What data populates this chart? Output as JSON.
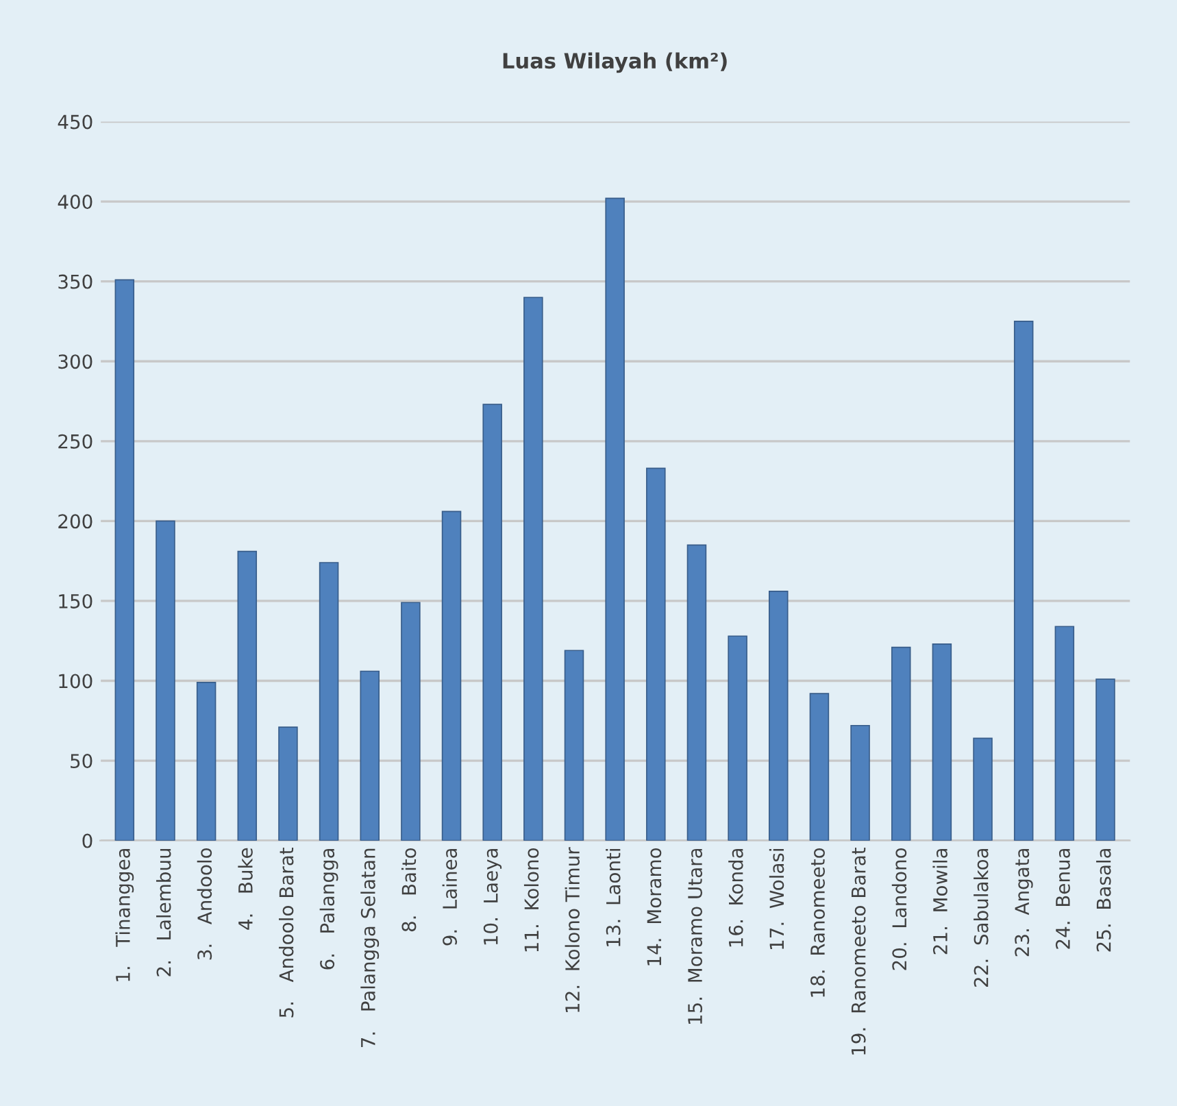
{
  "chart_data": {
    "type": "bar",
    "title": "Luas Wilayah (km²)",
    "categories": [
      "1.   Tinanggea",
      "2.   Lalembuu",
      "3.   Andoolo",
      "4.   Buke",
      "5.   Andoolo Barat",
      "6.   Palangga",
      "7.   Palangga Selatan",
      "8.   Baito",
      "9.   Lainea",
      "10.  Laeya",
      "11.  Kolono",
      "12.  Kolono Timur",
      "13.  Laonti",
      "14.  Moramo",
      "15.  Moramo Utara",
      "16.  Konda",
      "17.  Wolasi",
      "18.  Ranomeeto",
      "19.  Ranomeeto Barat",
      "20.  Landono",
      "21.  Mowila",
      "22.  Sabulakoa",
      "23.  Angata",
      "24.  Benua",
      "25.  Basala"
    ],
    "values": [
      351,
      200,
      99,
      181,
      71,
      174,
      106,
      149,
      206,
      273,
      340,
      119,
      402,
      233,
      185,
      128,
      156,
      92,
      72,
      121,
      123,
      64,
      325,
      134,
      101
    ],
    "color": "#4f81bd",
    "ylim": [
      0,
      450
    ],
    "yticks": [
      0,
      50,
      100,
      150,
      200,
      250,
      300,
      350,
      400,
      450
    ],
    "grid": "y"
  }
}
